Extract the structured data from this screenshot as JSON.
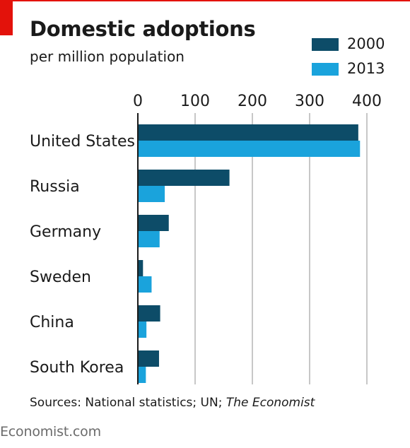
{
  "colors": {
    "accent": "#e3120b",
    "series_2000": "#0d4c68",
    "series_2013": "#1aa3dc",
    "grid": "#c7c7c7"
  },
  "header": {
    "title": "Domestic adoptions",
    "subtitle": "per million population"
  },
  "footer": {
    "source_prefix": "Sources: National statistics; UN; ",
    "source_italic": "The Economist",
    "site": "Economist.com"
  },
  "chart_data": {
    "type": "bar",
    "orientation": "horizontal",
    "title": "Domestic adoptions",
    "subtitle": "per million population",
    "categories": [
      "United States",
      "Russia",
      "Germany",
      "Sweden",
      "China",
      "South Korea"
    ],
    "series": [
      {
        "name": "2000",
        "color": "#0d4c68",
        "values": [
          385,
          160,
          54,
          9,
          39,
          37
        ]
      },
      {
        "name": "2013",
        "color": "#1aa3dc",
        "values": [
          388,
          47,
          38,
          24,
          15,
          14
        ]
      }
    ],
    "xlim": [
      0,
      400
    ],
    "xticks": [
      "0",
      "100",
      "200",
      "300",
      "400"
    ],
    "grid": true,
    "legend_position": "top-right"
  }
}
